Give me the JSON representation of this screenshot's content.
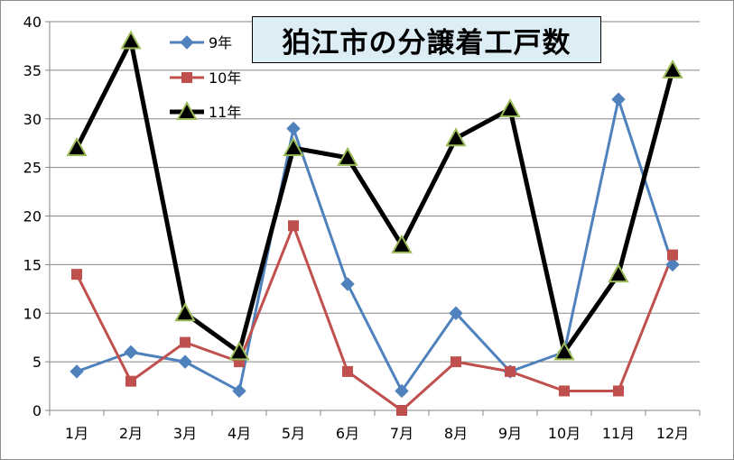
{
  "chart_data": {
    "type": "line",
    "title": "狛江市の分譲着工戸数",
    "categories": [
      "1月",
      "2月",
      "3月",
      "4月",
      "5月",
      "6月",
      "7月",
      "8月",
      "9月",
      "10月",
      "11月",
      "12月"
    ],
    "ylim": [
      0,
      40
    ],
    "yticks": [
      "0",
      "5",
      "10",
      "15",
      "20",
      "25",
      "30",
      "35",
      "40"
    ],
    "grid": "horizontal",
    "legend": "top-left",
    "series": [
      {
        "name": "9年",
        "color": "#4f81bd",
        "marker": "diamond",
        "values": [
          4,
          6,
          5,
          2,
          29,
          13,
          2,
          10,
          4,
          6,
          32,
          15
        ]
      },
      {
        "name": "10年",
        "color": "#c0504d",
        "marker": "square",
        "values": [
          14,
          3,
          7,
          5,
          19,
          4,
          0,
          5,
          4,
          2,
          2,
          16
        ]
      },
      {
        "name": "11年",
        "color": "#000000",
        "marker": "triangle",
        "values": [
          27,
          38,
          10,
          6,
          27,
          26,
          17,
          28,
          31,
          6,
          14,
          35
        ]
      }
    ]
  }
}
